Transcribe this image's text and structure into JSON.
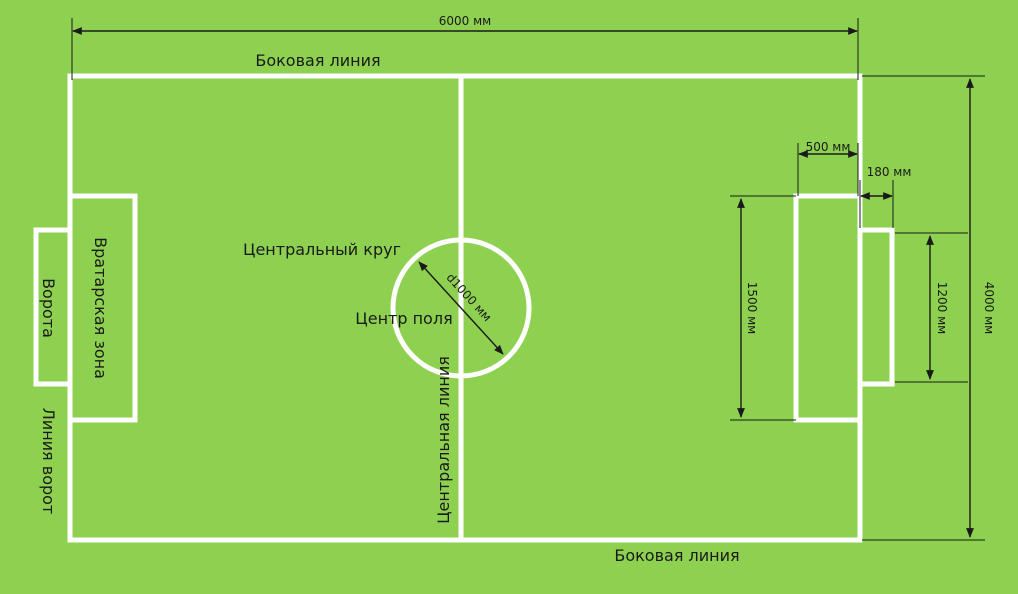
{
  "colors": {
    "background": "#8ed150",
    "field_lines": "#ffffff",
    "dimension_lines": "#1a1a1a"
  },
  "labels": {
    "sideline_top": "Боковая линия",
    "sideline_bottom": "Боковая линия",
    "center_circle": "Центральный круг",
    "center_point": "Центр поля",
    "center_line": "Центральная линия",
    "goal_area": "Вратарская зона",
    "goal": "Ворота",
    "goal_line": "Линия ворот"
  },
  "dimensions": {
    "field_length": "6000 мм",
    "field_width": "4000 мм",
    "goal_area_depth": "500 мм",
    "goal_depth": "180 мм",
    "goal_area_width": "1500 мм",
    "goal_width": "1200 мм",
    "circle_diameter": "d1000 мм"
  }
}
